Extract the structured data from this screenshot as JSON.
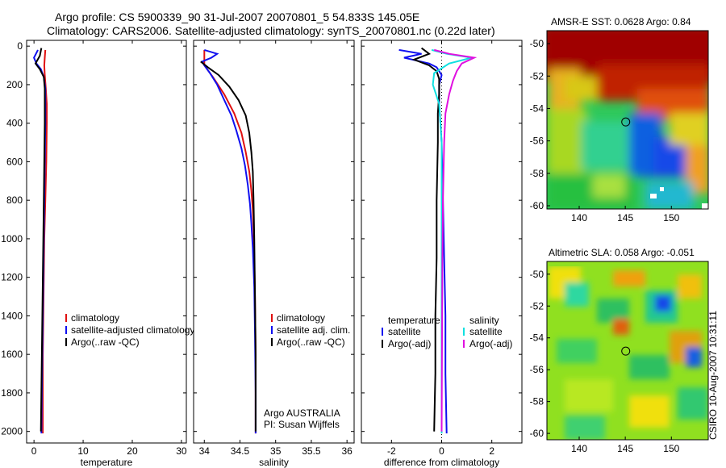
{
  "header": {
    "title_line1": "Argo profile: CS 5900339_90 31-Jul-2007 20070801_5 54.833S 145.05E",
    "title_line2": "Climatology: CARS2006. Satellite-adjusted climatology: synTS_20070801.nc (0.22d later)"
  },
  "side_label": "CSIRO 10-Aug-2007 10:31:11",
  "colors": {
    "red": "#e01010",
    "blue": "#1010f0",
    "black": "#000000",
    "cyan": "#10e0e0",
    "magenta": "#e010e0"
  },
  "chart_data": [
    {
      "type": "line",
      "name": "temperature-panel",
      "xlabel": "temperature",
      "ylabel": "",
      "xlim": [
        -1.5,
        31
      ],
      "ylim": [
        2060,
        -30
      ],
      "xticks": [
        0,
        10,
        20,
        30
      ],
      "yticks": [
        0,
        200,
        400,
        600,
        800,
        1000,
        1200,
        1400,
        1600,
        1800,
        2000
      ],
      "legend": {
        "placement": "lower-middle",
        "entries": [
          "climatology",
          "satellite-adjusted climatology",
          "Argo(..raw -QC)"
        ],
        "colors": [
          "red",
          "blue",
          "black"
        ]
      },
      "series": [
        {
          "name": "climatology",
          "color": "red",
          "points": [
            [
              2.3,
              20
            ],
            [
              2.2,
              60
            ],
            [
              2.1,
              100
            ],
            [
              2.2,
              150
            ],
            [
              2.4,
              220
            ],
            [
              2.6,
              300
            ],
            [
              2.6,
              400
            ],
            [
              2.5,
              600
            ],
            [
              2.3,
              800
            ],
            [
              2.1,
              1000
            ],
            [
              2.0,
              1200
            ],
            [
              1.9,
              1400
            ],
            [
              1.8,
              1600
            ],
            [
              1.8,
              1800
            ],
            [
              1.8,
              2010
            ]
          ]
        },
        {
          "name": "satellite-adjusted climatology",
          "color": "blue",
          "points": [
            [
              0.8,
              20
            ],
            [
              0.0,
              60
            ],
            [
              0.5,
              90
            ],
            [
              1.4,
              120
            ],
            [
              2.0,
              160
            ],
            [
              2.3,
              220
            ],
            [
              2.3,
              300
            ],
            [
              2.3,
              400
            ],
            [
              2.2,
              600
            ],
            [
              2.1,
              800
            ],
            [
              2.0,
              1000
            ],
            [
              1.9,
              1200
            ],
            [
              1.8,
              1400
            ],
            [
              1.7,
              1600
            ],
            [
              1.6,
              1800
            ],
            [
              1.5,
              2010
            ]
          ]
        },
        {
          "name": "Argo(..raw -QC)",
          "color": "black",
          "points": [
            [
              1.5,
              10
            ],
            [
              1.2,
              50
            ],
            [
              0.3,
              90
            ],
            [
              1.2,
              120
            ],
            [
              2.0,
              160
            ],
            [
              2.2,
              220
            ],
            [
              2.2,
              300
            ],
            [
              2.2,
              400
            ],
            [
              2.1,
              600
            ],
            [
              2.0,
              800
            ],
            [
              1.9,
              1000
            ],
            [
              1.8,
              1200
            ],
            [
              1.7,
              1400
            ],
            [
              1.6,
              1600
            ],
            [
              1.5,
              1800
            ],
            [
              1.4,
              2000
            ]
          ]
        }
      ],
      "annotations": []
    },
    {
      "type": "line",
      "name": "salinity-panel",
      "xlabel": "salinity",
      "ylabel": "",
      "xlim": [
        33.85,
        36.1
      ],
      "ylim": [
        2060,
        -30
      ],
      "xticks": [
        34,
        34.5,
        35,
        35.5,
        36
      ],
      "yticks": [
        0,
        200,
        400,
        600,
        800,
        1000,
        1200,
        1400,
        1600,
        1800,
        2000
      ],
      "legend": {
        "placement": "lower-middle",
        "entries": [
          "climatology",
          "satellite adj. clim.",
          "Argo(..raw -QC)"
        ],
        "colors": [
          "red",
          "blue",
          "black"
        ]
      },
      "series": [
        {
          "name": "climatology",
          "color": "red",
          "points": [
            [
              34.0,
              20
            ],
            [
              34.0,
              70
            ],
            [
              34.0,
              100
            ],
            [
              34.12,
              160
            ],
            [
              34.28,
              250
            ],
            [
              34.42,
              350
            ],
            [
              34.52,
              450
            ],
            [
              34.58,
              550
            ],
            [
              34.63,
              650
            ],
            [
              34.66,
              750
            ],
            [
              34.68,
              850
            ],
            [
              34.69,
              950
            ],
            [
              34.7,
              1100
            ],
            [
              34.71,
              1300
            ],
            [
              34.72,
              1600
            ],
            [
              34.72,
              2010
            ]
          ]
        },
        {
          "name": "satellite adj. clim.",
          "color": "blue",
          "points": [
            [
              34.0,
              20
            ],
            [
              34.18,
              40
            ],
            [
              34.1,
              60
            ],
            [
              33.97,
              80
            ],
            [
              34.0,
              100
            ],
            [
              34.08,
              140
            ],
            [
              34.18,
              200
            ],
            [
              34.28,
              280
            ],
            [
              34.38,
              360
            ],
            [
              34.45,
              440
            ],
            [
              34.52,
              530
            ],
            [
              34.57,
              620
            ],
            [
              34.61,
              720
            ],
            [
              34.64,
              820
            ],
            [
              34.66,
              920
            ],
            [
              34.68,
              1050
            ],
            [
              34.7,
              1250
            ],
            [
              34.71,
              1500
            ],
            [
              34.72,
              1800
            ],
            [
              34.72,
              2010
            ]
          ]
        },
        {
          "name": "Argo(..raw -QC)",
          "color": "black",
          "points": [
            [
              33.95,
              80
            ],
            [
              34.05,
              110
            ],
            [
              34.2,
              150
            ],
            [
              34.35,
              210
            ],
            [
              34.48,
              280
            ],
            [
              34.58,
              360
            ],
            [
              34.63,
              450
            ],
            [
              34.66,
              550
            ],
            [
              34.68,
              650
            ],
            [
              34.69,
              800
            ],
            [
              34.7,
              1000
            ],
            [
              34.71,
              1300
            ],
            [
              34.72,
              1600
            ],
            [
              34.72,
              2000
            ]
          ]
        }
      ],
      "annotations": [
        "Argo AUSTRALIA",
        "PI: Susan Wijffels"
      ]
    },
    {
      "type": "line",
      "name": "difference-panel",
      "xlabel": "difference from climatology",
      "ylabel": "",
      "xlim": [
        -3.2,
        3.2
      ],
      "ylim": [
        2060,
        -30
      ],
      "xticks": [
        -2,
        0,
        2
      ],
      "yticks": [
        0,
        200,
        400,
        600,
        800,
        1000,
        1200,
        1400,
        1600,
        1800,
        2000
      ],
      "legend": {
        "placement": "lower",
        "headers": [
          "temperature",
          "salinity"
        ],
        "entries": [
          "satellite",
          "Argo(-adj)",
          "satellite",
          "Argo(-adj)"
        ],
        "colors": [
          "blue",
          "black",
          "cyan",
          "magenta"
        ]
      },
      "series": [
        {
          "name": "temperature satellite",
          "color": "blue",
          "points": [
            [
              -1.7,
              20
            ],
            [
              -0.8,
              40
            ],
            [
              -1.5,
              60
            ],
            [
              -0.5,
              90
            ],
            [
              -0.2,
              110
            ],
            [
              0.0,
              150
            ],
            [
              -0.1,
              200
            ],
            [
              -0.1,
              300
            ],
            [
              0.0,
              500
            ],
            [
              0.05,
              800
            ],
            [
              0.1,
              1100
            ],
            [
              0.15,
              1400
            ],
            [
              0.15,
              1700
            ],
            [
              0.2,
              2010
            ]
          ]
        },
        {
          "name": "temperature Argo(-adj)",
          "color": "black",
          "points": [
            [
              -0.8,
              10
            ],
            [
              -0.5,
              40
            ],
            [
              -1.1,
              70
            ],
            [
              -0.5,
              100
            ],
            [
              -0.2,
              130
            ],
            [
              -0.1,
              170
            ],
            [
              -0.1,
              250
            ],
            [
              -0.15,
              350
            ],
            [
              -0.15,
              500
            ],
            [
              -0.2,
              800
            ],
            [
              -0.2,
              1100
            ],
            [
              -0.25,
              1400
            ],
            [
              -0.25,
              1700
            ],
            [
              -0.3,
              2000
            ]
          ]
        },
        {
          "name": "salinity satellite",
          "color": "cyan",
          "points": [
            [
              -0.4,
              20
            ],
            [
              0.2,
              40
            ],
            [
              1.2,
              60
            ],
            [
              0.3,
              90
            ],
            [
              -0.3,
              140
            ],
            [
              -0.35,
              200
            ],
            [
              -0.1,
              300
            ],
            [
              0.0,
              500
            ],
            [
              0.0,
              800
            ],
            [
              0.0,
              1100
            ],
            [
              0.0,
              1400
            ],
            [
              0.0,
              1700
            ],
            [
              0.0,
              2010
            ]
          ]
        },
        {
          "name": "salinity Argo(-adj)",
          "color": "magenta",
          "points": [
            [
              -0.3,
              20
            ],
            [
              0.3,
              40
            ],
            [
              1.3,
              60
            ],
            [
              0.8,
              90
            ],
            [
              0.6,
              130
            ],
            [
              0.45,
              180
            ],
            [
              0.3,
              250
            ],
            [
              0.15,
              350
            ],
            [
              0.1,
              500
            ],
            [
              0.05,
              800
            ],
            [
              0.03,
              1100
            ],
            [
              0.02,
              1400
            ],
            [
              0.01,
              1700
            ],
            [
              0.0,
              2000
            ]
          ]
        }
      ],
      "annotations": []
    },
    {
      "type": "heatmap",
      "name": "sst-map",
      "title": "AMSR-E SST: 0.0628 Argo: 0.84",
      "xlim": [
        136.5,
        154
      ],
      "ylim": [
        -60.2,
        -49.2
      ],
      "xticks": [
        140,
        145,
        150
      ],
      "yticks": [
        -50,
        -52,
        -54,
        -56,
        -58,
        -60
      ],
      "marker": {
        "lon": 145.05,
        "lat": -54.833
      }
    },
    {
      "type": "heatmap",
      "name": "sla-map",
      "title": "Altimetric SLA: 0.058 Argo: -0.051",
      "xlim": [
        136.5,
        154
      ],
      "ylim": [
        -60.4,
        -49.2
      ],
      "xticks": [
        140,
        145,
        150
      ],
      "yticks": [
        -50,
        -52,
        -54,
        -56,
        -58,
        -60
      ],
      "marker": {
        "lon": 145.05,
        "lat": -54.833
      }
    }
  ]
}
